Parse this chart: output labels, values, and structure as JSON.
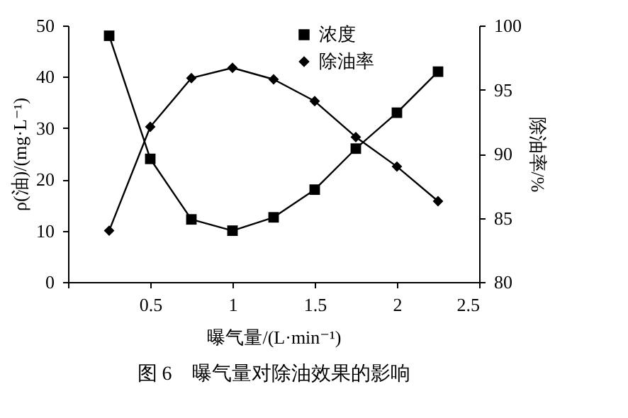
{
  "chart_data": {
    "type": "line",
    "title": "图 6　曝气量对除油效果的影响",
    "xlabel": "曝气量/(L·min⁻¹)",
    "ylabel": "ρ(油)/(mg·L⁻¹)",
    "y2label": "除油率/%",
    "x": [
      0.25,
      0.5,
      0.75,
      1.0,
      1.25,
      1.5,
      1.75,
      2.0,
      2.25
    ],
    "series": [
      {
        "name": "浓度",
        "color": "#000000",
        "marker": "square",
        "values": [
          48,
          24,
          12.2,
          10,
          12.6,
          18,
          26,
          33,
          41
        ]
      },
      {
        "name": "除油率",
        "color": "#000000",
        "marker": "diamond",
        "axis": "y2",
        "values": [
          84,
          92.1,
          95.9,
          96.7,
          95.8,
          94.1,
          91.3,
          89,
          86.3
        ]
      }
    ],
    "xlim": [
      0,
      2.5
    ],
    "xticks": [
      {
        "value": 0,
        "label": null
      },
      0.5,
      1,
      1.5,
      2,
      2.5
    ],
    "ylim": [
      0,
      50
    ],
    "yticks": [
      0,
      10,
      20,
      30,
      40,
      50
    ],
    "y2lim": [
      80,
      100
    ],
    "y2ticks": [
      80,
      85,
      90,
      95,
      100
    ],
    "legend": "top right",
    "grid": false
  }
}
